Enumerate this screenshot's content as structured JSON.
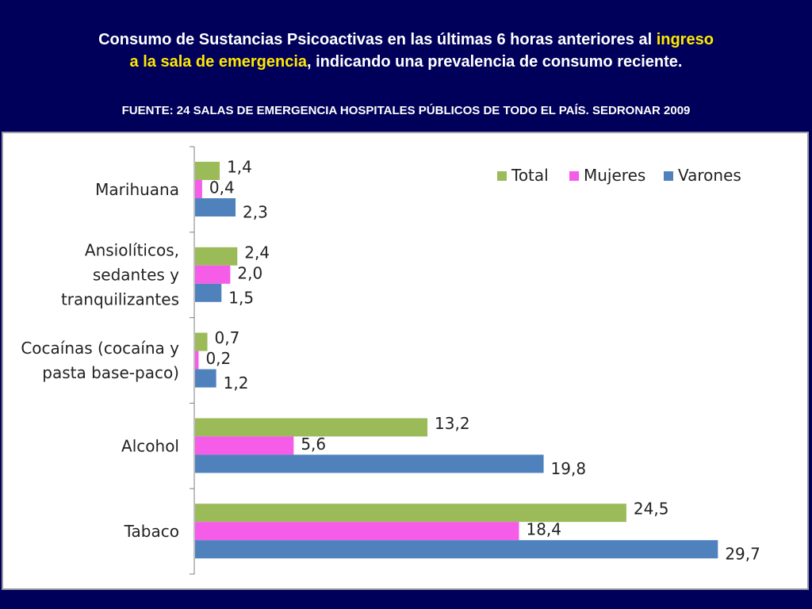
{
  "slide": {
    "title_part1": "Consumo de Sustancias Psicoactivas en las últimas 6 horas anteriores al ",
    "title_highlight1": "ingreso",
    "title_highlight2": "a la sala de emergencia",
    "title_part2": ", indicando una prevalencia de consumo reciente.",
    "source": "FUENTE: 24 SALAS DE EMERGENCIA HOSPITALES PÚBLICOS DE TODO EL PAÍS. SEDRONAR 2009",
    "colors": {
      "background": "#00005a",
      "title_text": "#ffffff",
      "highlight": "#ffe800"
    }
  },
  "chart_data": {
    "type": "bar",
    "orientation": "horizontal",
    "categories": [
      [
        "Marihuana"
      ],
      [
        "Ansiolíticos,",
        "sedantes y",
        "tranquilizantes"
      ],
      [
        "Cocaínas (cocaína y",
        "pasta base-paco)"
      ],
      [
        "Alcohol"
      ],
      [
        "Tabaco"
      ]
    ],
    "series": [
      {
        "name": "Total",
        "color": "#9bbb59",
        "values": [
          1.4,
          2.4,
          0.7,
          13.2,
          24.5
        ],
        "labels": [
          "1,4",
          "2,4",
          "0,7",
          "13,2",
          "24,5"
        ]
      },
      {
        "name": "Mujeres",
        "color": "#f55ce8",
        "values": [
          0.4,
          2.0,
          0.2,
          5.6,
          18.4
        ],
        "labels": [
          "0,4",
          "2,0",
          "0,2",
          "5,6",
          "18,4"
        ]
      },
      {
        "name": "Varones",
        "color": "#4f81bd",
        "values": [
          2.3,
          1.5,
          1.2,
          19.8,
          29.7
        ],
        "labels": [
          "2,3",
          "1,5",
          "1,2",
          "19,8",
          "29,7"
        ]
      }
    ],
    "xlim": [
      0,
      30
    ],
    "legend": "top-right",
    "grid": false,
    "value_axis_visible": false
  }
}
